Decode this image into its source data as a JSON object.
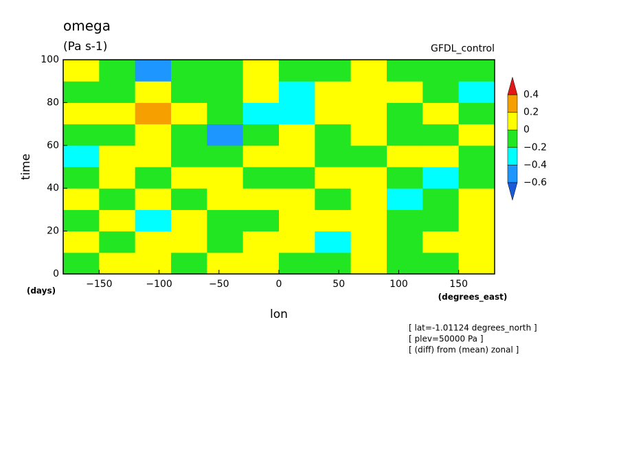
{
  "chart_data": {
    "type": "contourf",
    "title": "omega",
    "subtitle": "(Pa s-1)",
    "dataset": "GFDL_control",
    "y_label": "time",
    "y_units": "(days)",
    "x_label": "lon",
    "x_units": "(degrees_east)",
    "notes": [
      "[ lat=-1.01124 degrees_north ]",
      "[ plev=50000 Pa ]",
      "[ (diff) from (mean) zonal ]"
    ],
    "xlim": [
      -180,
      180
    ],
    "ylim": [
      0,
      100
    ],
    "xticks": [
      {
        "value": -150,
        "label": "−150"
      },
      {
        "value": -100,
        "label": "−100"
      },
      {
        "value": -50,
        "label": "−50"
      },
      0,
      50,
      100,
      150
    ],
    "yticks": [
      0,
      20,
      40,
      60,
      80,
      100
    ],
    "levels": [
      {
        "value": -0.6,
        "label": "−0.6"
      },
      {
        "value": -0.4,
        "label": "−0.4"
      },
      {
        "value": -0.2,
        "label": "−0.2"
      },
      0,
      0.2,
      0.4
    ],
    "colors": [
      "#1a5ad8",
      "#1e96ff",
      "#00ffff",
      "#22e622",
      "#ffff00",
      "#f5a000",
      "#e01818"
    ],
    "field": {
      "lon": [
        -165,
        -135,
        -105,
        -75,
        -45,
        -15,
        15,
        45,
        75,
        105,
        135,
        165
      ],
      "time": [
        5,
        15,
        25,
        35,
        45,
        55,
        65,
        75,
        85,
        95
      ],
      "values": [
        [
          -0.1,
          0.05,
          0.05,
          -0.1,
          0.05,
          0.05,
          -0.1,
          -0.1,
          0.05,
          -0.1,
          -0.1,
          0.05
        ],
        [
          0.05,
          -0.1,
          0.05,
          0.05,
          -0.1,
          0.05,
          0.05,
          -0.3,
          0.05,
          -0.1,
          0.05,
          0.05
        ],
        [
          -0.1,
          0.05,
          -0.3,
          0.05,
          -0.1,
          -0.1,
          0.05,
          0.05,
          0.05,
          -0.1,
          -0.1,
          0.05
        ],
        [
          0.05,
          -0.1,
          0.05,
          -0.1,
          0.05,
          0.05,
          0.05,
          -0.1,
          0.05,
          -0.3,
          -0.1,
          0.05
        ],
        [
          -0.1,
          0.05,
          -0.1,
          0.05,
          0.05,
          -0.1,
          -0.1,
          0.05,
          0.05,
          -0.1,
          -0.3,
          -0.1
        ],
        [
          -0.3,
          0.05,
          0.05,
          -0.1,
          -0.1,
          0.05,
          0.05,
          -0.1,
          -0.1,
          0.05,
          0.05,
          -0.1
        ],
        [
          -0.1,
          -0.1,
          0.05,
          -0.1,
          -0.5,
          -0.1,
          0.05,
          -0.1,
          0.05,
          -0.1,
          -0.1,
          0.05
        ],
        [
          0.05,
          0.05,
          0.25,
          0.05,
          -0.1,
          -0.3,
          -0.3,
          0.05,
          0.05,
          -0.1,
          0.05,
          -0.1
        ],
        [
          -0.1,
          -0.1,
          0.05,
          -0.1,
          -0.1,
          0.05,
          -0.3,
          0.05,
          0.05,
          0.05,
          -0.1,
          -0.3
        ],
        [
          0.05,
          -0.1,
          -0.5,
          -0.1,
          -0.1,
          0.05,
          -0.1,
          -0.1,
          0.05,
          -0.1,
          -0.1,
          -0.1
        ]
      ]
    }
  }
}
